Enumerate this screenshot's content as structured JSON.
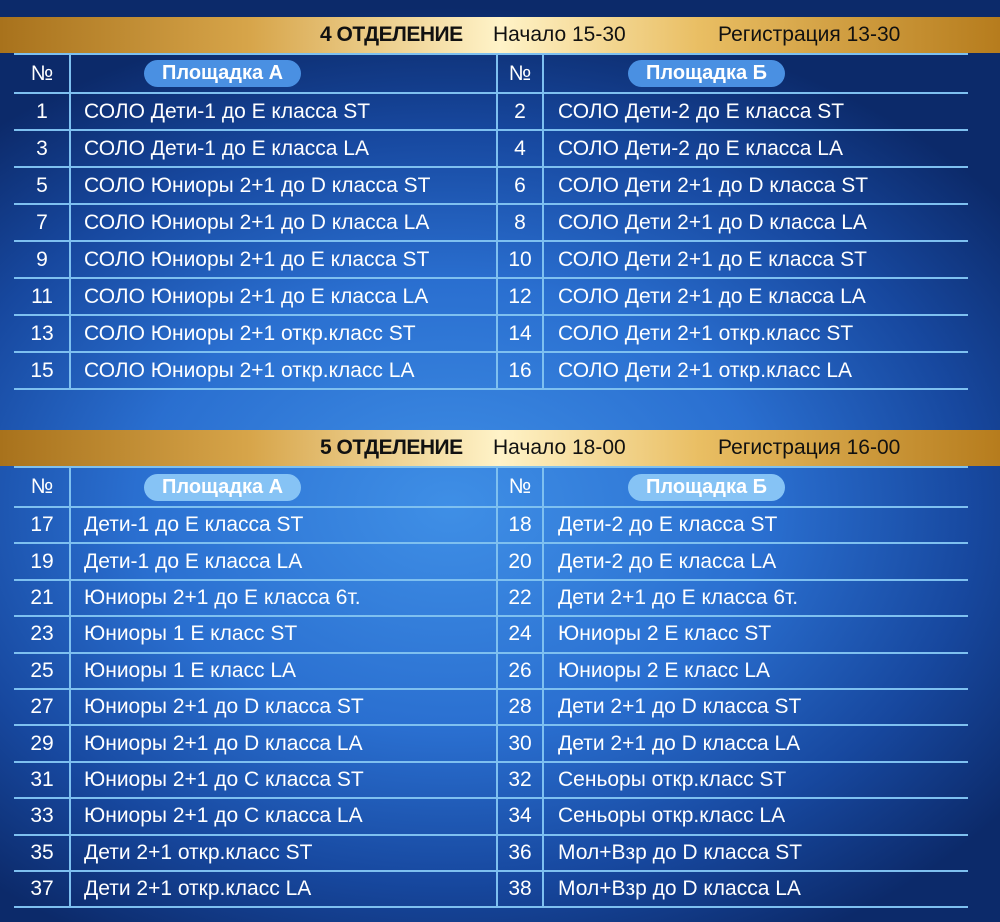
{
  "sections": [
    {
      "title": "4 ОТДЕЛЕНИЕ",
      "start": "Начало 15-30",
      "registration": "Регистрация 13-30",
      "num_header": "№",
      "venue_a": "Площадка  А",
      "venue_b": "Площадка  Б",
      "rows": [
        {
          "na": "1",
          "a": "СОЛО Дети-1 до Е класса ST",
          "nb": "2",
          "b": "СОЛО Дети-2 до Е класса ST"
        },
        {
          "na": "3",
          "a": "СОЛО Дети-1 до Е класса LA",
          "nb": "4",
          "b": "СОЛО Дети-2 до Е класса LA"
        },
        {
          "na": "5",
          "a": "СОЛО Юниоры 2+1 до D класса ST",
          "nb": "6",
          "b": "СОЛО Дети 2+1 до D класса ST"
        },
        {
          "na": "7",
          "a": "СОЛО Юниоры 2+1 до D класса LA",
          "nb": "8",
          "b": "СОЛО Дети 2+1 до D класса LA"
        },
        {
          "na": "9",
          "a": "СОЛО Юниоры 2+1 до Е класса ST",
          "nb": "10",
          "b": "СОЛО Дети 2+1 до Е класса ST"
        },
        {
          "na": "11",
          "a": "СОЛО Юниоры 2+1 до Е класса LA",
          "nb": "12",
          "b": "СОЛО Дети 2+1 до Е класса LA"
        },
        {
          "na": "13",
          "a": "СОЛО Юниоры 2+1 откр.класс ST",
          "nb": "14",
          "b": "СОЛО Дети 2+1 откр.класс ST"
        },
        {
          "na": "15",
          "a": "СОЛО Юниоры 2+1 откр.класс LA",
          "nb": "16",
          "b": "СОЛО Дети 2+1 откр.класс LA"
        }
      ]
    },
    {
      "title": "5 ОТДЕЛЕНИЕ",
      "start": "Начало 18-00",
      "registration": "Регистрация 16-00",
      "num_header": "№",
      "venue_a": "Площадка  А",
      "venue_b": "Площадка  Б",
      "rows": [
        {
          "na": "17",
          "a": "Дети-1 до Е класса ST",
          "nb": "18",
          "b": "Дети-2 до Е класса ST"
        },
        {
          "na": "19",
          "a": "Дети-1 до Е класса LA",
          "nb": "20",
          "b": "Дети-2 до Е класса LA"
        },
        {
          "na": "21",
          "a": "Юниоры 2+1 до Е класса 6т.",
          "nb": "22",
          "b": "Дети 2+1 до Е класса 6т."
        },
        {
          "na": "23",
          "a": "Юниоры 1 Е класс ST",
          "nb": "24",
          "b": "Юниоры 2 Е класс ST"
        },
        {
          "na": "25",
          "a": "Юниоры 1 Е класс LA",
          "nb": "26",
          "b": "Юниоры 2 Е класс LA"
        },
        {
          "na": "27",
          "a": "Юниоры 2+1 до D класса ST",
          "nb": "28",
          "b": "Дети 2+1 до D класса ST"
        },
        {
          "na": "29",
          "a": "Юниоры 2+1 до D класса LA",
          "nb": "30",
          "b": "Дети 2+1 до D класса LA"
        },
        {
          "na": "31",
          "a": "Юниоры 2+1 до С класса ST",
          "nb": "32",
          "b": "Сеньоры откр.класс ST"
        },
        {
          "na": "33",
          "a": "Юниоры 2+1 до С класса LA",
          "nb": "34",
          "b": "Сеньоры откр.класс LA"
        },
        {
          "na": "35",
          "a": "Дети 2+1 откр.класс ST",
          "nb": "36",
          "b": "Мол+Взр до D класса ST"
        },
        {
          "na": "37",
          "a": "Дети 2+1 откр.класс LA",
          "nb": "38",
          "b": "Мол+Взр до D класса LA"
        }
      ]
    }
  ]
}
